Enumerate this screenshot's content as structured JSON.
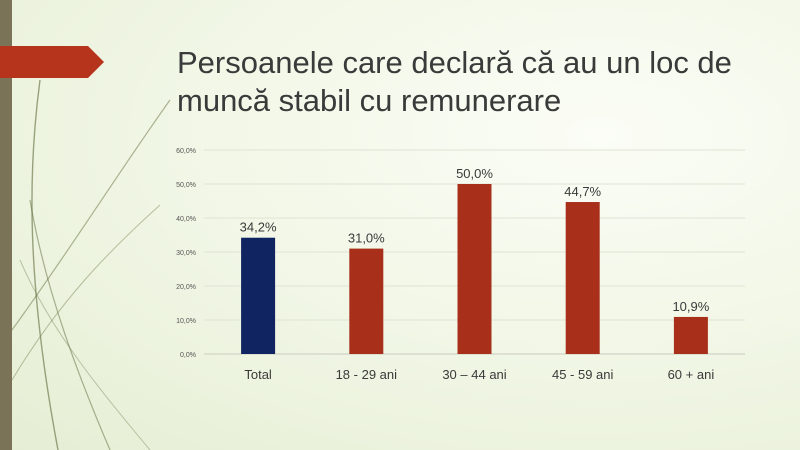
{
  "slide": {
    "title": "Persoanele care declară că au un loc de muncă stabil cu remunerare"
  },
  "colors": {
    "total_bar": "#0f2460",
    "group_bar": "#a8301a",
    "arrow": "#b5341b",
    "strip": "#7b7358",
    "text": "#3a3a3a"
  },
  "chart_data": {
    "type": "bar",
    "title": "",
    "xlabel": "",
    "ylabel": "",
    "categories": [
      "Total",
      "18 - 29 ani",
      "30 – 44 ani",
      "45 - 59 ani",
      "60 + ani"
    ],
    "values": [
      34.2,
      31.0,
      50.0,
      44.7,
      10.9
    ],
    "value_labels": [
      "34,2%",
      "31,0%",
      "50,0%",
      "44,7%",
      "10,9%"
    ],
    "bar_colors": [
      "#0f2460",
      "#a8301a",
      "#a8301a",
      "#a8301a",
      "#a8301a"
    ],
    "ylim": [
      0,
      60
    ],
    "yticks": [
      0,
      10,
      20,
      30,
      40,
      50,
      60
    ],
    "ytick_labels": [
      "0,0%",
      "10,0%",
      "20,0%",
      "30,0%",
      "40,0%",
      "50,0%",
      "60,0%"
    ],
    "grid": true,
    "legend": "none"
  }
}
